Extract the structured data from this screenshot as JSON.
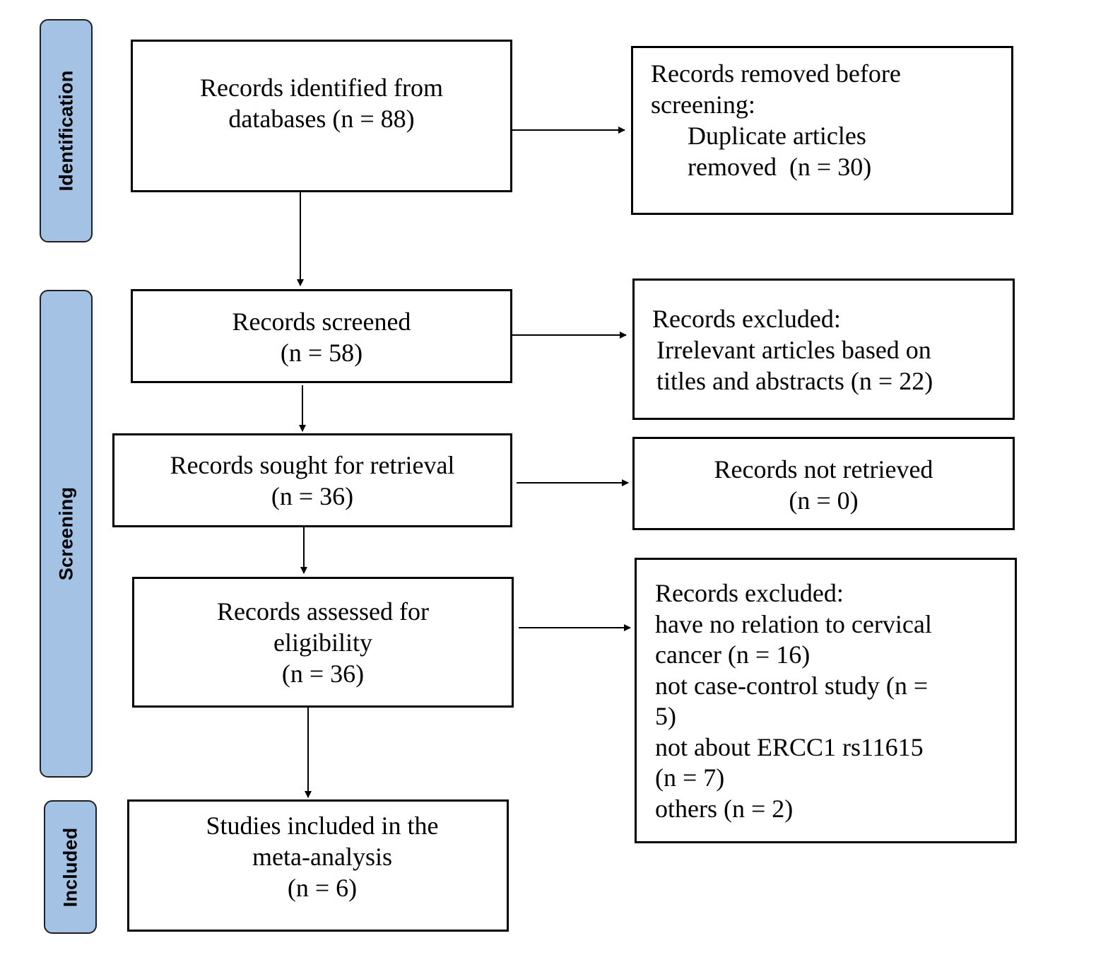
{
  "colors": {
    "stage_fill": "#a4c2e4",
    "stage_border": "#1f1f1f",
    "box_border": "#000000",
    "arrow": "#000000"
  },
  "stages": {
    "identification": "Identification",
    "screening": "Screening",
    "included": "Included"
  },
  "boxes": {
    "identified": [
      "Records identified from",
      "databases (n = 88)"
    ],
    "removed": [
      "Records removed before",
      "screening:",
      "Duplicate articles",
      "removed  (n = 30)"
    ],
    "screened": [
      "Records screened",
      "(n = 58)"
    ],
    "excluded_titles": [
      "Records excluded:",
      "Irrelevant articles based on",
      "titles and abstracts (n = 22)"
    ],
    "sought": [
      "Records sought for retrieval",
      "(n = 36)"
    ],
    "not_retrieved": [
      "Records not retrieved",
      "(n = 0)"
    ],
    "assessed": [
      "Records assessed for",
      "eligibility",
      "(n = 36)"
    ],
    "excluded_eligibility": [
      "Records excluded:",
      "have no relation to cervical",
      "cancer (n = 16)",
      "not case-control study (n =",
      "5)",
      "not about ERCC1 rs11615",
      "(n = 7)",
      "others (n = 2)"
    ],
    "included": [
      "Studies included in the",
      "meta-analysis",
      "(n = 6)"
    ]
  }
}
